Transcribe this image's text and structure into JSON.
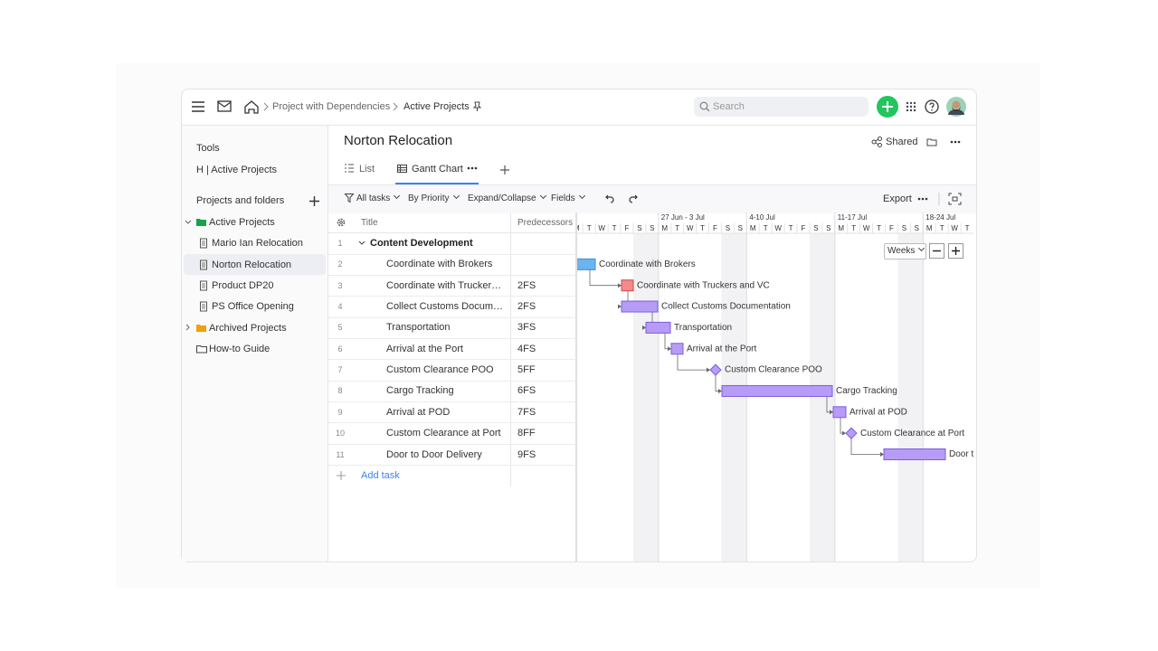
{
  "topbar": {
    "breadcrumb": [
      "Project with Dependencies",
      "Active Projects"
    ],
    "search_placeholder": "Search"
  },
  "sidebar": {
    "tools_title": "Tools",
    "tools_items": [
      "H | Active Projects"
    ],
    "projects_title": "Projects and folders",
    "items": [
      "Active Projects",
      "Mario Ian Relocation",
      "Norton Relocation",
      "Product DP20",
      "PS Office Opening",
      "Archived Projects",
      "How-to Guide"
    ]
  },
  "project": {
    "title": "Norton Relocation",
    "shared": "Shared",
    "tabs": [
      "List",
      "Gantt Chart"
    ]
  },
  "toolbar": {
    "filters": [
      "All tasks",
      "By Priority",
      "Expand/Collapse",
      "Fields"
    ],
    "export": "Export"
  },
  "table": {
    "columns": [
      "Title",
      "Predecessors"
    ],
    "rows": [
      {
        "number": 1,
        "title": "Content Development"
      },
      {
        "number": 2,
        "title": "Coordinate with Brokers"
      },
      {
        "number": 3,
        "title": "Coordinate with Truckers and VC",
        "predecessors": "2FS"
      },
      {
        "number": 4,
        "title": "Collect Customs Documentation",
        "predecessors": "2FS"
      },
      {
        "number": 5,
        "title": "Transportation",
        "predecessors": "3FS"
      },
      {
        "number": 6,
        "title": "Arrival at the Port",
        "predecessors": "4FS"
      },
      {
        "number": 7,
        "title": "Custom Clearance POO",
        "predecessors": "5FF"
      },
      {
        "number": 8,
        "title": "Cargo Tracking",
        "predecessors": "6FS"
      },
      {
        "number": 9,
        "title": "Arrival at POD",
        "predecessors": "7FS"
      },
      {
        "number": 10,
        "title": "Custom Clearance at Port",
        "predecessors": "8FF"
      },
      {
        "number": 11,
        "title": "Door to Door Delivery",
        "predecessors": "9FS"
      }
    ],
    "add_task": "Add task"
  },
  "gantt": {
    "weeks": [
      "27 Jun - 3 Jul",
      "4-10 Jul",
      "11-17 Jul",
      "18-24 Jul"
    ],
    "weekdays": [
      "M",
      "T",
      "W",
      "T",
      "F",
      "S",
      "S"
    ],
    "zoom": "Weeks"
  }
}
